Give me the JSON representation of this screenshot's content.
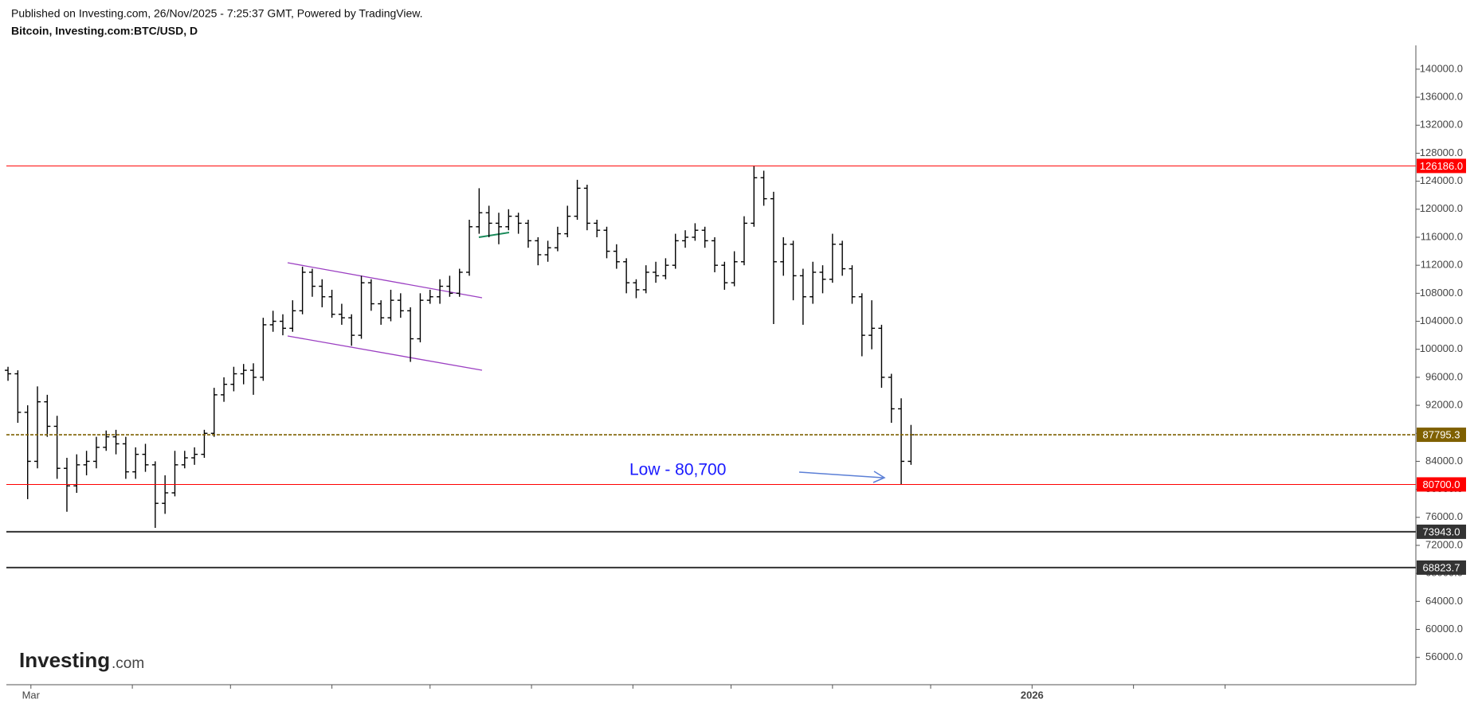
{
  "header": {
    "published": "Published on Investing.com, 26/Nov/2025 - 7:25:37 GMT, Powered by TradingView.",
    "symbol": "Bitcoin, Investing.com:BTC/USD, D"
  },
  "logo": {
    "brand": "Investing",
    "suffix": ".com"
  },
  "chart_data": {
    "type": "ohlc",
    "annotation": "Low - 80,700",
    "xlim": [
      -7.5,
      423.3
    ],
    "xticks": [
      {
        "value": 0,
        "label": "Mar"
      },
      {
        "value": 31,
        "label": null
      },
      {
        "value": 61,
        "label": null
      },
      {
        "value": 92,
        "label": null
      },
      {
        "value": 122,
        "label": null
      },
      {
        "value": 153,
        "label": null
      },
      {
        "value": 184,
        "label": null
      },
      {
        "value": 214,
        "label": null
      },
      {
        "value": 245,
        "label": null
      },
      {
        "value": 275,
        "label": null
      },
      {
        "value": 306,
        "label": "2026"
      },
      {
        "value": 337,
        "label": null
      },
      {
        "value": 365,
        "label": null
      }
    ],
    "ylim": [
      52100,
      143400
    ],
    "yticks": [
      {
        "value": 56000,
        "label": "56000.0"
      },
      {
        "value": 60000,
        "label": "60000.0"
      },
      {
        "value": 64000,
        "label": "64000.0"
      },
      {
        "value": 68000,
        "label": "68000.0"
      },
      {
        "value": 72000,
        "label": "72000.0"
      },
      {
        "value": 76000,
        "label": "76000.0"
      },
      {
        "value": 80000,
        "label": "80000.0"
      },
      {
        "value": 84000,
        "label": "84000.0"
      },
      {
        "value": 88000,
        "label": "88000.0"
      },
      {
        "value": 92000,
        "label": "92000.0"
      },
      {
        "value": 96000,
        "label": "96000.0"
      },
      {
        "value": 100000,
        "label": "100000.0"
      },
      {
        "value": 104000,
        "label": "104000.0"
      },
      {
        "value": 108000,
        "label": "108000.0"
      },
      {
        "value": 112000,
        "label": "112000.0"
      },
      {
        "value": 116000,
        "label": "116000.0"
      },
      {
        "value": 120000,
        "label": "120000.0"
      },
      {
        "value": 124000,
        "label": "124000.0"
      },
      {
        "value": 128000,
        "label": "128000.0"
      },
      {
        "value": 132000,
        "label": "132000.0"
      },
      {
        "value": 136000,
        "label": "136000.0"
      },
      {
        "value": 140000,
        "label": "140000.0"
      }
    ],
    "grid": false,
    "color": "#000000",
    "levels": [
      {
        "value": 126186,
        "label": "126186.0",
        "color": "#ff0000",
        "style": "solid"
      },
      {
        "value": 87795.3,
        "label": "87795.3",
        "color": "#7f6000",
        "style": "dashed"
      },
      {
        "value": 80700,
        "label": "80700.0",
        "color": "#ff0000",
        "style": "solid"
      },
      {
        "value": 73943,
        "label": "73943.0",
        "color": "#333333",
        "style": "thick"
      },
      {
        "value": 68823.7,
        "label": "68823.7",
        "color": "#333333",
        "style": "thick"
      }
    ],
    "x": [
      -7,
      -4,
      -1,
      2,
      5,
      8,
      11,
      14,
      17,
      20,
      23,
      26,
      29,
      32,
      35,
      38,
      41,
      44,
      47,
      50,
      53,
      56,
      59,
      62,
      65,
      68,
      71,
      74,
      77,
      80,
      83,
      86,
      89,
      92,
      95,
      98,
      101,
      104,
      107,
      110,
      113,
      116,
      119,
      122,
      125,
      128,
      131,
      134,
      137,
      140,
      143,
      146,
      149,
      152,
      155,
      158,
      161,
      164,
      167,
      170,
      173,
      176,
      179,
      182,
      185,
      188,
      191,
      194,
      197,
      200,
      203,
      206,
      209,
      212,
      215,
      218,
      221,
      224,
      227,
      230,
      233,
      236,
      239,
      242,
      245,
      248,
      251,
      254,
      257,
      260,
      263,
      266,
      269
    ],
    "ohlc": [
      [
        97000,
        97500,
        95500,
        96500
      ],
      [
        96500,
        97000,
        89500,
        91000
      ],
      [
        91000,
        92000,
        78600,
        84000
      ],
      [
        84000,
        94700,
        83000,
        92500
      ],
      [
        92500,
        93500,
        87500,
        89000
      ],
      [
        89000,
        90500,
        81500,
        83000
      ],
      [
        83000,
        84500,
        76800,
        80500
      ],
      [
        80500,
        85000,
        79500,
        83500
      ],
      [
        83500,
        85500,
        82000,
        84000
      ],
      [
        84000,
        87500,
        83000,
        86000
      ],
      [
        86000,
        88400,
        85500,
        87500
      ],
      [
        87500,
        88500,
        85000,
        86500
      ],
      [
        86500,
        87500,
        81500,
        82500
      ],
      [
        82500,
        86000,
        81500,
        85000
      ],
      [
        85000,
        86500,
        82500,
        83500
      ],
      [
        83500,
        84000,
        74500,
        78000
      ],
      [
        78000,
        82000,
        76500,
        79500
      ],
      [
        79500,
        85500,
        79000,
        83500
      ],
      [
        83500,
        85500,
        83000,
        84500
      ],
      [
        84500,
        86000,
        83500,
        85000
      ],
      [
        85000,
        88500,
        84500,
        88000
      ],
      [
        88000,
        94500,
        87500,
        93500
      ],
      [
        93500,
        96000,
        92500,
        95000
      ],
      [
        95000,
        97500,
        94000,
        96500
      ],
      [
        96500,
        97900,
        95000,
        97000
      ],
      [
        97000,
        98000,
        93500,
        96000
      ],
      [
        96000,
        104500,
        95500,
        103500
      ],
      [
        103500,
        105500,
        102500,
        104000
      ],
      [
        104000,
        105000,
        102000,
        103000
      ],
      [
        103000,
        107000,
        102500,
        105500
      ],
      [
        105500,
        111800,
        105000,
        111000
      ],
      [
        111000,
        111500,
        107500,
        109000
      ],
      [
        109000,
        110000,
        106000,
        107500
      ],
      [
        107500,
        108500,
        104500,
        105000
      ],
      [
        105000,
        106500,
        103500,
        104500
      ],
      [
        104500,
        105000,
        100500,
        102000
      ],
      [
        102000,
        110500,
        101500,
        109500
      ],
      [
        109500,
        110000,
        105500,
        106500
      ],
      [
        106500,
        107000,
        103500,
        104500
      ],
      [
        104500,
        108500,
        104000,
        107000
      ],
      [
        107000,
        108000,
        104500,
        105500
      ],
      [
        105500,
        106000,
        98200,
        101500
      ],
      [
        101500,
        108000,
        101000,
        107000
      ],
      [
        107000,
        108500,
        106500,
        107500
      ],
      [
        107500,
        110000,
        106500,
        109000
      ],
      [
        109000,
        110500,
        107500,
        108000
      ],
      [
        108000,
        111500,
        107500,
        111000
      ],
      [
        111000,
        118500,
        110500,
        117500
      ],
      [
        117500,
        123000,
        116500,
        119500
      ],
      [
        119500,
        120500,
        116000,
        118000
      ],
      [
        118000,
        119500,
        115000,
        117500
      ],
      [
        117500,
        120000,
        117000,
        119000
      ],
      [
        119000,
        119500,
        116500,
        118000
      ],
      [
        118000,
        118500,
        114500,
        115500
      ],
      [
        115500,
        116000,
        112000,
        113500
      ],
      [
        113500,
        115500,
        112500,
        114500
      ],
      [
        114500,
        117500,
        114000,
        116500
      ],
      [
        116500,
        120500,
        116000,
        119000
      ],
      [
        119000,
        124200,
        118500,
        123000
      ],
      [
        123000,
        123500,
        117000,
        118000
      ],
      [
        118000,
        118500,
        116000,
        117000
      ],
      [
        117000,
        117500,
        113000,
        114000
      ],
      [
        114000,
        115000,
        111500,
        112500
      ],
      [
        112500,
        113000,
        108000,
        109500
      ],
      [
        109500,
        110000,
        107300,
        108500
      ],
      [
        108500,
        112000,
        108000,
        111000
      ],
      [
        111000,
        112500,
        109500,
        110500
      ],
      [
        110500,
        113000,
        110000,
        112000
      ],
      [
        112000,
        116500,
        111500,
        115500
      ],
      [
        115500,
        117000,
        114500,
        116000
      ],
      [
        116000,
        118000,
        115500,
        117000
      ],
      [
        117000,
        117500,
        114500,
        115500
      ],
      [
        115500,
        116000,
        111000,
        112000
      ],
      [
        112000,
        112500,
        108500,
        109500
      ],
      [
        109500,
        114000,
        109000,
        112500
      ],
      [
        112500,
        119000,
        112000,
        118000
      ],
      [
        118000,
        126186,
        117500,
        124500
      ],
      [
        124500,
        125500,
        120500,
        121500
      ],
      [
        121500,
        122500,
        103600,
        112500
      ],
      [
        112500,
        116000,
        110500,
        115000
      ],
      [
        115000,
        115500,
        107000,
        110500
      ],
      [
        110500,
        111500,
        103500,
        107500
      ],
      [
        107500,
        112500,
        106500,
        111000
      ],
      [
        111000,
        112000,
        108000,
        110000
      ],
      [
        110000,
        116500,
        109500,
        115000
      ],
      [
        115000,
        115500,
        110500,
        111500
      ],
      [
        111500,
        112000,
        106500,
        107500
      ],
      [
        107500,
        108000,
        99000,
        102000
      ],
      [
        102000,
        107000,
        100000,
        103000
      ],
      [
        103000,
        103500,
        94500,
        96000
      ],
      [
        96000,
        96500,
        89500,
        91500
      ],
      [
        91500,
        93000,
        80700,
        84000
      ],
      [
        84000,
        89200,
        83500,
        87800
      ]
    ]
  }
}
